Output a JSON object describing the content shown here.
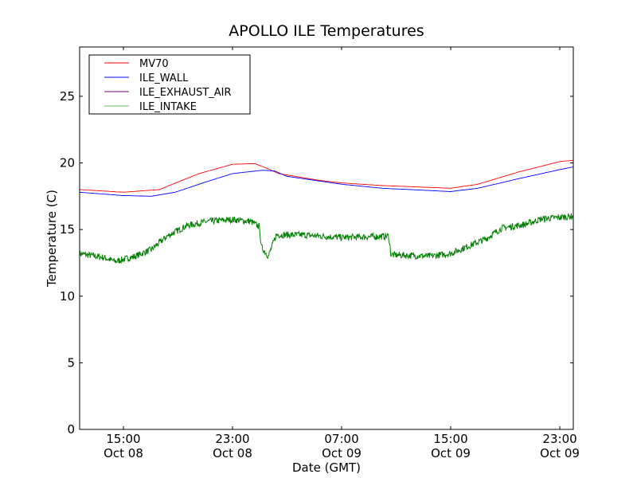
{
  "chart_data": {
    "type": "line",
    "title": "APOLLO ILE Temperatures",
    "xlabel": "Date (GMT)",
    "ylabel": "Temperature (C)",
    "x_units": "hours since Oct 08 00:00 GMT",
    "xlim": [
      11.79,
      47.99
    ],
    "ylim": [
      0,
      28.7
    ],
    "yticks": [
      0,
      5,
      10,
      15,
      20,
      25
    ],
    "xticks": [
      {
        "x": 15,
        "line1": "15:00",
        "line2": "Oct 08"
      },
      {
        "x": 23,
        "line1": "23:00",
        "line2": "Oct 08"
      },
      {
        "x": 31,
        "line1": "07:00",
        "line2": "Oct 09"
      },
      {
        "x": 39,
        "line1": "15:00",
        "line2": "Oct 09"
      },
      {
        "x": 47,
        "line1": "23:00",
        "line2": "Oct 09"
      }
    ],
    "grid": false,
    "legend_position": "top-left",
    "series": [
      {
        "name": "MV70",
        "color": "#ff0000",
        "legend_color": "#ff0000",
        "x": [
          11.79,
          15,
          17.63,
          20.55,
          23,
          24.64,
          25.51,
          26.39,
          29.31,
          31,
          33.98,
          39,
          40.99,
          43.91,
          47,
          47.99
        ],
        "y": [
          18.0,
          17.8,
          18.0,
          19.2,
          19.9,
          19.95,
          19.6,
          19.2,
          18.7,
          18.5,
          18.3,
          18.1,
          18.4,
          19.3,
          20.1,
          20.2
        ]
      },
      {
        "name": "ILE_WALL",
        "color": "#0000ff",
        "legend_color": "#0000ff",
        "x": [
          11.79,
          15,
          17.04,
          18.8,
          21.13,
          23,
          25.22,
          26.09,
          26.97,
          31,
          33.98,
          39,
          40.99,
          43.91,
          47,
          47.99
        ],
        "y": [
          17.8,
          17.55,
          17.5,
          17.8,
          18.6,
          19.2,
          19.45,
          19.4,
          19.0,
          18.4,
          18.1,
          17.85,
          18.1,
          18.8,
          19.5,
          19.7
        ]
      },
      {
        "name": "ILE_EXHAUST_AIR",
        "color": "#800080",
        "legend_color": "#800080",
        "x": [],
        "y": []
      },
      {
        "name": "ILE_INTAKE",
        "color": "#008000",
        "legend_color": "#66bb66",
        "noisy": true,
        "x": [
          11.79,
          13.54,
          14.42,
          15.88,
          17.04,
          18.21,
          19.67,
          21.13,
          23,
          24.34,
          24.99,
          25.1,
          25.63,
          26.21,
          28.14,
          31,
          34.45,
          34.62,
          37.48,
          39,
          40.4,
          41.57,
          42.74,
          44.49,
          45.66,
          47.99
        ],
        "y": [
          13.2,
          12.9,
          12.6,
          13.0,
          13.5,
          14.5,
          15.3,
          15.6,
          15.75,
          15.6,
          15.2,
          13.7,
          13.0,
          14.6,
          14.6,
          14.4,
          14.5,
          13.1,
          13.0,
          13.2,
          13.8,
          14.3,
          15.1,
          15.4,
          15.8,
          16.0
        ]
      }
    ]
  }
}
